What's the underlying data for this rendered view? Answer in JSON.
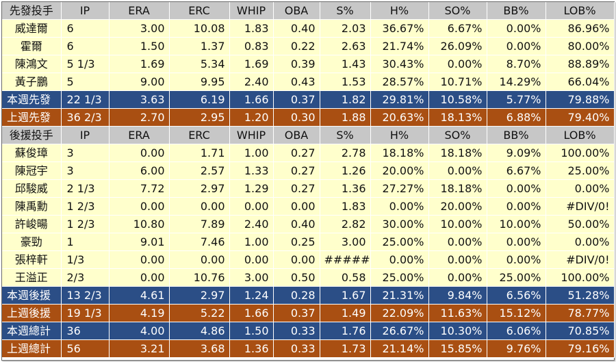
{
  "columns": [
    "IP",
    "ERA",
    "ERC",
    "WHIP",
    "OBA",
    "S%",
    "H%",
    "SO%",
    "BB%",
    "LOB%"
  ],
  "sections": [
    {
      "header": "先發投手",
      "rows": [
        {
          "name": "威達爾",
          "stats": [
            "6",
            "3.00",
            "10.08",
            "1.83",
            "0.40",
            "2.03",
            "36.67%",
            "6.67%",
            "0.00%",
            "86.96%"
          ]
        },
        {
          "name": "霍爾",
          "stats": [
            "6",
            "1.50",
            "1.37",
            "0.83",
            "0.22",
            "2.63",
            "21.74%",
            "26.09%",
            "0.00%",
            "80.00%"
          ]
        },
        {
          "name": "陳鴻文",
          "stats": [
            "5 1/3",
            "1.69",
            "5.34",
            "1.69",
            "0.39",
            "1.43",
            "30.43%",
            "0.00%",
            "8.70%",
            "88.89%"
          ]
        },
        {
          "name": "黃子鵬",
          "stats": [
            "5",
            "9.00",
            "9.95",
            "2.40",
            "0.43",
            "1.53",
            "28.57%",
            "10.71%",
            "14.29%",
            "66.04%"
          ]
        }
      ],
      "totals": [
        {
          "kind": "cur",
          "name": "本週先發",
          "stats": [
            "22 1/3",
            "3.63",
            "6.19",
            "1.66",
            "0.37",
            "1.82",
            "29.81%",
            "10.58%",
            "5.77%",
            "79.88%"
          ]
        },
        {
          "kind": "prev",
          "name": "上週先發",
          "stats": [
            "36 2/3",
            "2.70",
            "2.95",
            "1.20",
            "0.30",
            "1.88",
            "20.63%",
            "18.13%",
            "6.88%",
            "79.40%"
          ]
        }
      ]
    },
    {
      "header": "後援投手",
      "rows": [
        {
          "name": "蘇俊璋",
          "stats": [
            "3",
            "0.00",
            "1.71",
            "1.00",
            "0.27",
            "2.78",
            "18.18%",
            "18.18%",
            "9.09%",
            "100.00%"
          ]
        },
        {
          "name": "陳冠宇",
          "stats": [
            "3",
            "6.00",
            "2.57",
            "1.33",
            "0.27",
            "1.26",
            "20.00%",
            "0.00%",
            "6.67%",
            "25.00%"
          ]
        },
        {
          "name": "邱駿威",
          "stats": [
            "2 1/3",
            "7.72",
            "2.97",
            "1.29",
            "0.27",
            "1.36",
            "27.27%",
            "18.18%",
            "0.00%",
            "0.00%"
          ]
        },
        {
          "name": "陳禹勳",
          "stats": [
            "1 2/3",
            "0.00",
            "0.00",
            "0.00",
            "0.00",
            "1.83",
            "0.00%",
            "20.00%",
            "0.00%",
            "#DIV/0!"
          ]
        },
        {
          "name": "許峻暘",
          "stats": [
            "1 2/3",
            "10.80",
            "7.89",
            "2.40",
            "0.40",
            "2.82",
            "30.00%",
            "10.00%",
            "10.00%",
            "50.00%"
          ]
        },
        {
          "name": "豪勁",
          "stats": [
            "1",
            "9.01",
            "7.46",
            "1.00",
            "0.25",
            "3.00",
            "25.00%",
            "0.00%",
            "0.00%",
            "0.00%"
          ]
        },
        {
          "name": "張梓軒",
          "stats": [
            "1/3",
            "0.00",
            "0.00",
            "0.00",
            "0.00",
            "#####",
            "0.00%",
            "0.00%",
            "0.00%",
            "#DIV/0!"
          ]
        },
        {
          "name": "王溢正",
          "stats": [
            "2/3",
            "0.00",
            "10.76",
            "3.00",
            "0.50",
            "0.58",
            "25.00%",
            "0.00%",
            "25.00%",
            "100.00%"
          ]
        }
      ],
      "totals": [
        {
          "kind": "cur",
          "name": "本週後援",
          "stats": [
            "13 2/3",
            "4.61",
            "2.97",
            "1.24",
            "0.28",
            "1.67",
            "21.31%",
            "9.84%",
            "6.56%",
            "51.28%"
          ]
        },
        {
          "kind": "prev",
          "name": "上週後援",
          "stats": [
            "19 1/3",
            "4.19",
            "5.22",
            "1.66",
            "0.37",
            "1.49",
            "22.09%",
            "11.63%",
            "15.12%",
            "78.77%"
          ]
        },
        {
          "kind": "cur",
          "name": "本週總計",
          "stats": [
            "36",
            "4.00",
            "4.86",
            "1.50",
            "0.33",
            "1.76",
            "26.67%",
            "10.30%",
            "6.06%",
            "70.85%"
          ]
        },
        {
          "kind": "prev",
          "name": "上週總計",
          "stats": [
            "56",
            "3.21",
            "3.68",
            "1.36",
            "0.33",
            "1.73",
            "21.14%",
            "15.85%",
            "9.76%",
            "79.16%"
          ]
        }
      ]
    }
  ],
  "colors": {
    "header_bg": "#c7c7c7",
    "row_bg": "#ffffcc",
    "current_week_bg": "#2b4e86",
    "previous_week_bg": "#a94f12"
  }
}
